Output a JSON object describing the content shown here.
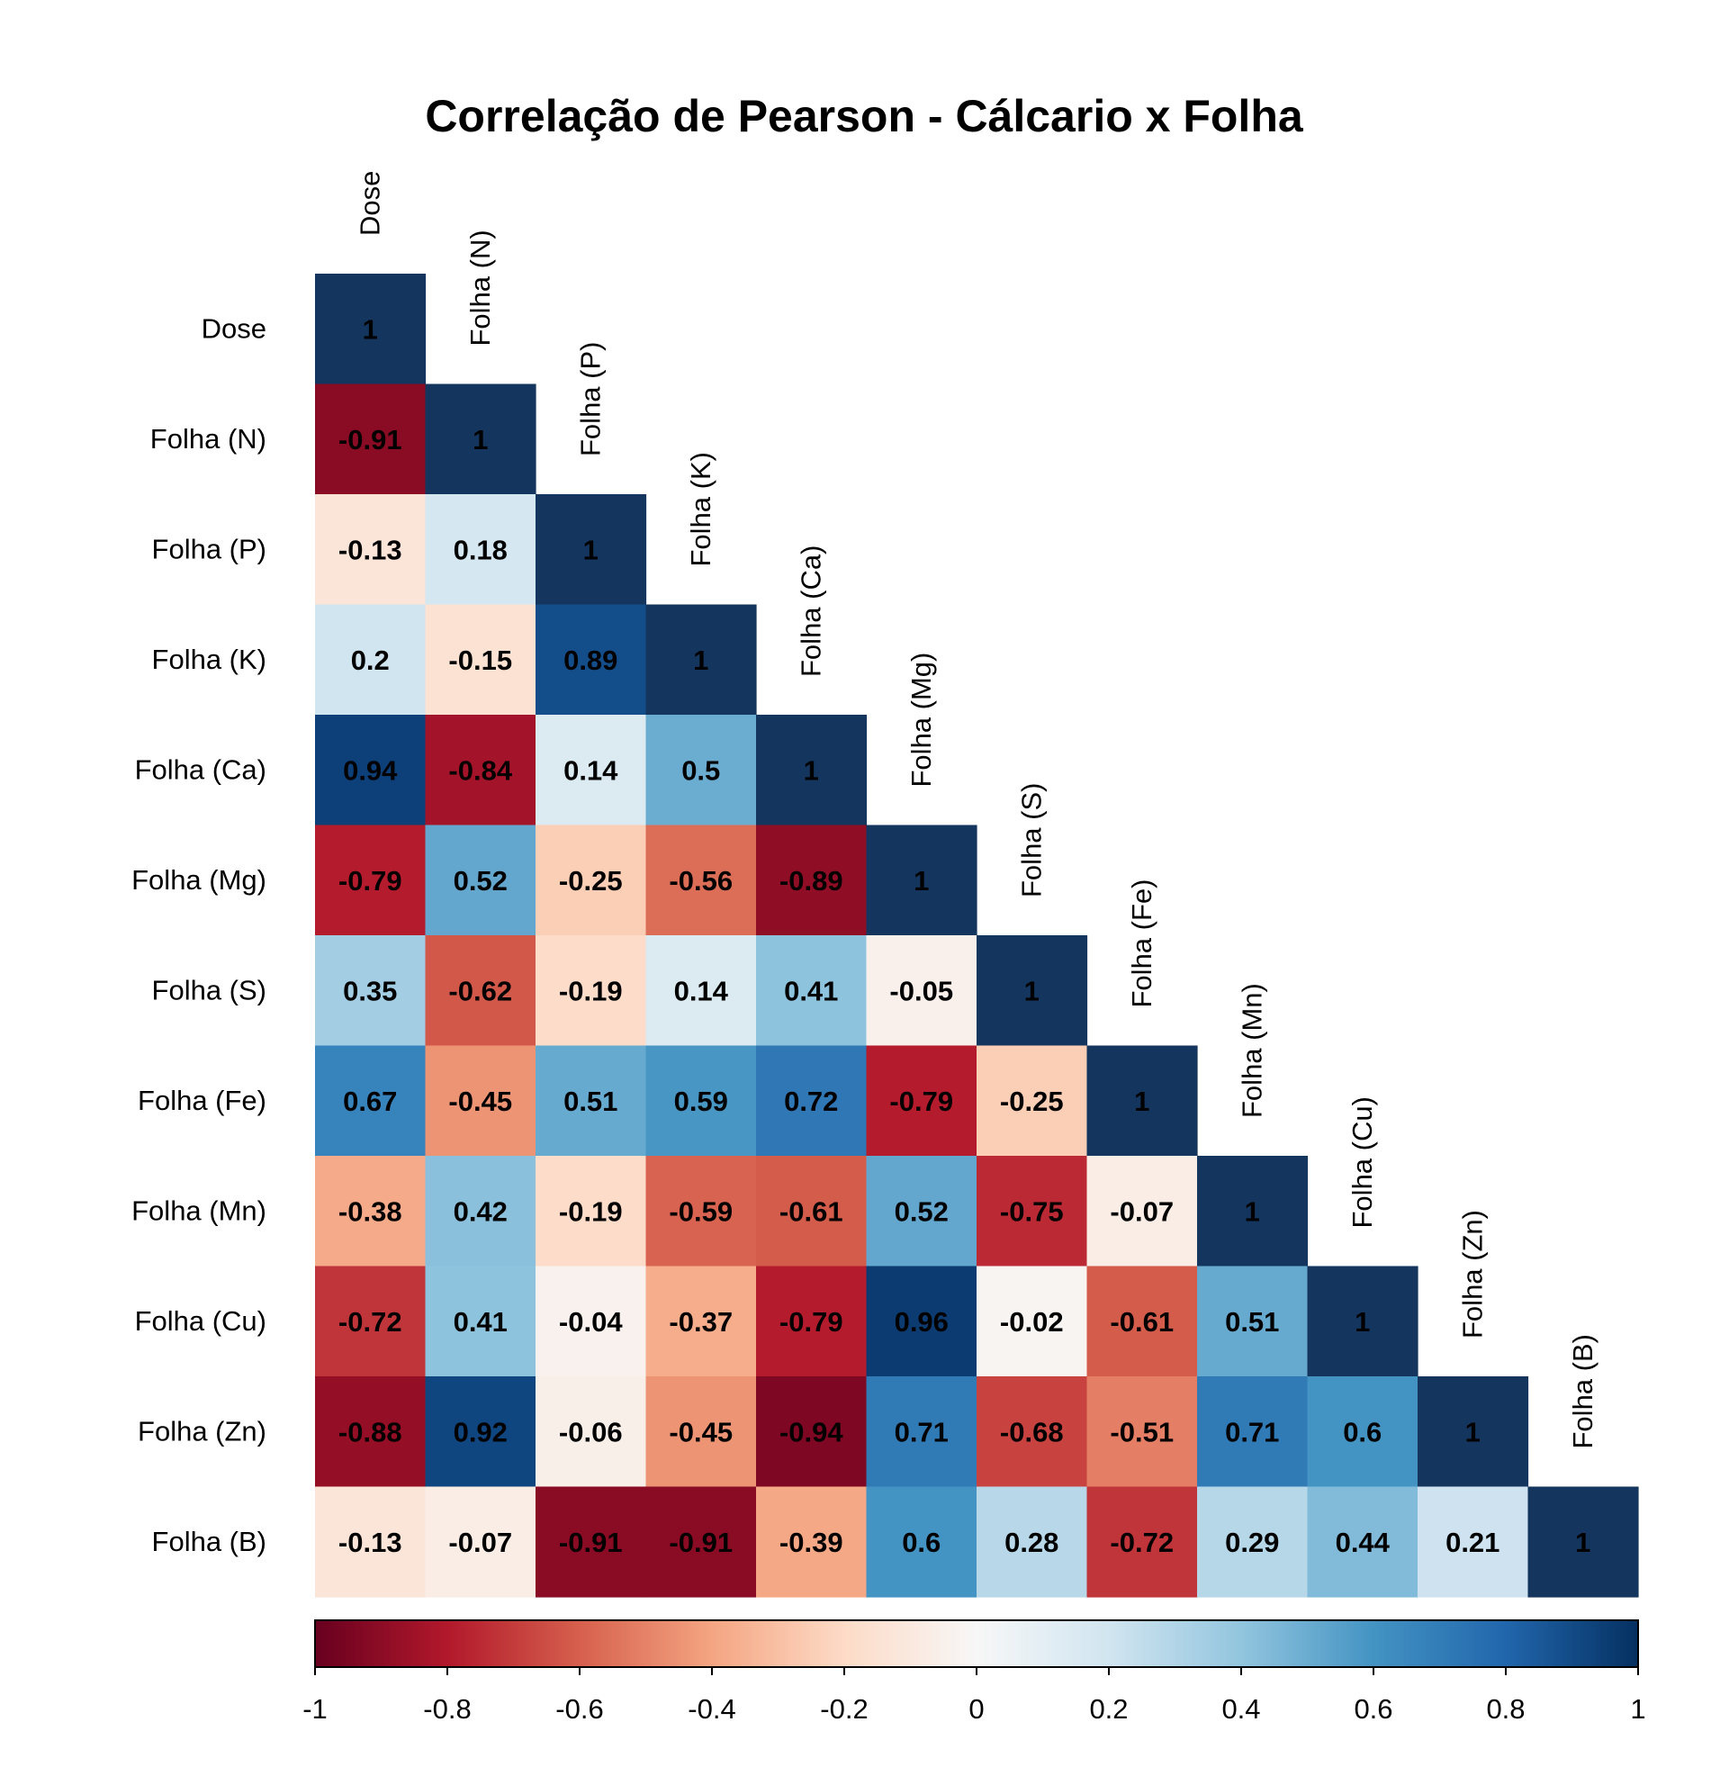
{
  "chart_data": {
    "type": "heatmap",
    "title": "Correlação de Pearson - Cálcario x Folha",
    "variables": [
      "Dose",
      "Folha (N)",
      "Folha (P)",
      "Folha (K)",
      "Folha (Ca)",
      "Folha (Mg)",
      "Folha (S)",
      "Folha (Fe)",
      "Folha (Mn)",
      "Folha (Cu)",
      "Folha (Zn)",
      "Folha (B)"
    ],
    "matrix": [
      [
        1
      ],
      [
        -0.91,
        1
      ],
      [
        -0.13,
        0.18,
        1
      ],
      [
        0.2,
        -0.15,
        0.89,
        1
      ],
      [
        0.94,
        -0.84,
        0.14,
        0.5,
        1
      ],
      [
        -0.79,
        0.52,
        -0.25,
        -0.56,
        -0.89,
        1
      ],
      [
        0.35,
        -0.62,
        -0.19,
        0.14,
        0.41,
        -0.05,
        1
      ],
      [
        0.67,
        -0.45,
        0.51,
        0.59,
        0.72,
        -0.79,
        -0.25,
        1
      ],
      [
        -0.38,
        0.42,
        -0.19,
        -0.59,
        -0.61,
        0.52,
        -0.75,
        -0.07,
        1
      ],
      [
        -0.72,
        0.41,
        -0.04,
        -0.37,
        -0.79,
        0.96,
        -0.02,
        -0.61,
        0.51,
        1
      ],
      [
        -0.88,
        0.92,
        -0.06,
        -0.45,
        -0.94,
        0.71,
        -0.68,
        -0.51,
        0.71,
        0.6,
        1
      ],
      [
        -0.13,
        -0.07,
        -0.91,
        -0.91,
        -0.39,
        0.6,
        0.28,
        -0.72,
        0.29,
        0.44,
        0.21,
        1
      ]
    ],
    "color_range": [
      -1,
      1
    ],
    "colorbar_ticks": [
      "-1",
      "-0.8",
      "-0.6",
      "-0.4",
      "-0.2",
      "0",
      "0.2",
      "0.4",
      "0.6",
      "0.8",
      "1"
    ],
    "colorbar_tick_values": [
      -1,
      -0.8,
      -0.6,
      -0.4,
      -0.2,
      0,
      0.2,
      0.4,
      0.6,
      0.8,
      1
    ],
    "colormap": "RdBu",
    "colormap_stops": [
      "#67001f",
      "#b2182b",
      "#d6604d",
      "#f4a582",
      "#fddbc7",
      "#f7f7f7",
      "#d1e5f0",
      "#92c5de",
      "#4393c3",
      "#2166ac",
      "#053061"
    ],
    "end_color": "#14365e",
    "legend_position": "bottom"
  }
}
